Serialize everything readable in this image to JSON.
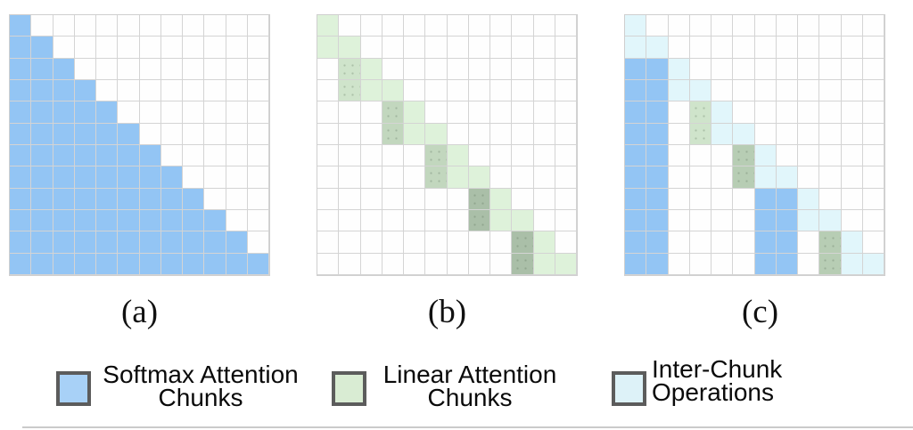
{
  "figure": {
    "panels": [
      {
        "id": "a",
        "label": "(a)",
        "grid_size": 12,
        "segments": [
          {
            "row": 0,
            "c0": 0,
            "c1": 0,
            "color": "blue"
          },
          {
            "row": 1,
            "c0": 0,
            "c1": 1,
            "color": "blue"
          },
          {
            "row": 2,
            "c0": 0,
            "c1": 2,
            "color": "blue"
          },
          {
            "row": 3,
            "c0": 0,
            "c1": 3,
            "color": "blue"
          },
          {
            "row": 4,
            "c0": 0,
            "c1": 4,
            "color": "blue"
          },
          {
            "row": 5,
            "c0": 0,
            "c1": 5,
            "color": "blue"
          },
          {
            "row": 6,
            "c0": 0,
            "c1": 6,
            "color": "blue"
          },
          {
            "row": 7,
            "c0": 0,
            "c1": 7,
            "color": "blue"
          },
          {
            "row": 8,
            "c0": 0,
            "c1": 8,
            "color": "blue"
          },
          {
            "row": 9,
            "c0": 0,
            "c1": 9,
            "color": "blue"
          },
          {
            "row": 10,
            "c0": 0,
            "c1": 10,
            "color": "blue"
          },
          {
            "row": 11,
            "c0": 0,
            "c1": 11,
            "color": "blue"
          }
        ]
      },
      {
        "id": "b",
        "label": "(b)",
        "grid_size": 12,
        "segments": [
          {
            "row": 0,
            "c0": 0,
            "c1": 0,
            "color": "lgreen"
          },
          {
            "row": 1,
            "c0": 0,
            "c1": 1,
            "color": "lgreen"
          },
          {
            "row": 2,
            "c0": 1,
            "c1": 1,
            "color": "green1"
          },
          {
            "row": 2,
            "c0": 2,
            "c1": 2,
            "color": "lgreen"
          },
          {
            "row": 3,
            "c0": 1,
            "c1": 1,
            "color": "green1"
          },
          {
            "row": 3,
            "c0": 2,
            "c1": 3,
            "color": "lgreen"
          },
          {
            "row": 4,
            "c0": 3,
            "c1": 3,
            "color": "green2"
          },
          {
            "row": 4,
            "c0": 4,
            "c1": 4,
            "color": "lgreen"
          },
          {
            "row": 5,
            "c0": 3,
            "c1": 3,
            "color": "green2"
          },
          {
            "row": 5,
            "c0": 4,
            "c1": 5,
            "color": "lgreen"
          },
          {
            "row": 6,
            "c0": 5,
            "c1": 5,
            "color": "green2"
          },
          {
            "row": 6,
            "c0": 6,
            "c1": 6,
            "color": "lgreen"
          },
          {
            "row": 7,
            "c0": 5,
            "c1": 5,
            "color": "green2"
          },
          {
            "row": 7,
            "c0": 6,
            "c1": 7,
            "color": "lgreen"
          },
          {
            "row": 8,
            "c0": 7,
            "c1": 7,
            "color": "green4"
          },
          {
            "row": 8,
            "c0": 8,
            "c1": 8,
            "color": "lgreen"
          },
          {
            "row": 9,
            "c0": 7,
            "c1": 7,
            "color": "green4"
          },
          {
            "row": 9,
            "c0": 8,
            "c1": 9,
            "color": "lgreen"
          },
          {
            "row": 10,
            "c0": 9,
            "c1": 9,
            "color": "green4"
          },
          {
            "row": 10,
            "c0": 10,
            "c1": 10,
            "color": "lgreen"
          },
          {
            "row": 11,
            "c0": 9,
            "c1": 9,
            "color": "green4"
          },
          {
            "row": 11,
            "c0": 10,
            "c1": 11,
            "color": "lgreen"
          }
        ]
      },
      {
        "id": "c",
        "label": "(c)",
        "grid_size": 12,
        "segments": [
          {
            "row": 0,
            "c0": 0,
            "c1": 0,
            "color": "cyan"
          },
          {
            "row": 1,
            "c0": 0,
            "c1": 1,
            "color": "cyan"
          },
          {
            "row": 2,
            "c0": 0,
            "c1": 1,
            "color": "blue"
          },
          {
            "row": 2,
            "c0": 2,
            "c1": 2,
            "color": "cyan"
          },
          {
            "row": 3,
            "c0": 0,
            "c1": 1,
            "color": "blue"
          },
          {
            "row": 3,
            "c0": 2,
            "c1": 3,
            "color": "cyan"
          },
          {
            "row": 4,
            "c0": 0,
            "c1": 1,
            "color": "blue"
          },
          {
            "row": 4,
            "c0": 3,
            "c1": 3,
            "color": "green1"
          },
          {
            "row": 4,
            "c0": 4,
            "c1": 4,
            "color": "cyan"
          },
          {
            "row": 5,
            "c0": 0,
            "c1": 1,
            "color": "blue"
          },
          {
            "row": 5,
            "c0": 3,
            "c1": 3,
            "color": "green1"
          },
          {
            "row": 5,
            "c0": 4,
            "c1": 5,
            "color": "cyan"
          },
          {
            "row": 6,
            "c0": 0,
            "c1": 1,
            "color": "blue"
          },
          {
            "row": 6,
            "c0": 5,
            "c1": 5,
            "color": "green3"
          },
          {
            "row": 6,
            "c0": 6,
            "c1": 6,
            "color": "cyan"
          },
          {
            "row": 7,
            "c0": 0,
            "c1": 1,
            "color": "blue"
          },
          {
            "row": 7,
            "c0": 5,
            "c1": 5,
            "color": "green3"
          },
          {
            "row": 7,
            "c0": 6,
            "c1": 7,
            "color": "cyan"
          },
          {
            "row": 8,
            "c0": 0,
            "c1": 1,
            "color": "blue"
          },
          {
            "row": 8,
            "c0": 6,
            "c1": 7,
            "color": "blue"
          },
          {
            "row": 8,
            "c0": 8,
            "c1": 8,
            "color": "cyan"
          },
          {
            "row": 9,
            "c0": 0,
            "c1": 1,
            "color": "blue"
          },
          {
            "row": 9,
            "c0": 6,
            "c1": 7,
            "color": "blue"
          },
          {
            "row": 9,
            "c0": 8,
            "c1": 9,
            "color": "cyan"
          },
          {
            "row": 10,
            "c0": 0,
            "c1": 1,
            "color": "blue"
          },
          {
            "row": 10,
            "c0": 6,
            "c1": 7,
            "color": "blue"
          },
          {
            "row": 10,
            "c0": 9,
            "c1": 9,
            "color": "green3"
          },
          {
            "row": 10,
            "c0": 10,
            "c1": 10,
            "color": "cyan"
          },
          {
            "row": 11,
            "c0": 0,
            "c1": 1,
            "color": "blue"
          },
          {
            "row": 11,
            "c0": 6,
            "c1": 7,
            "color": "blue"
          },
          {
            "row": 11,
            "c0": 9,
            "c1": 9,
            "color": "green3"
          },
          {
            "row": 11,
            "c0": 10,
            "c1": 11,
            "color": "cyan"
          }
        ]
      }
    ],
    "legend": {
      "entries": [
        {
          "swatch_color": "legend_blue",
          "line1": "Softmax Attention",
          "line2": "Chunks"
        },
        {
          "swatch_color": "legend_green",
          "line1": "Linear Attention",
          "line2": "Chunks"
        },
        {
          "swatch_color": "legend_cyan",
          "line1": "Inter-Chunk",
          "line2": "Operations"
        }
      ]
    },
    "colors": {
      "blue": "#93c5f4",
      "cyan": "#e1f6fb",
      "lgreen": "#def2da",
      "green1": "#cfe4cb",
      "green2": "#c2d7be",
      "green3": "#b7cdb4",
      "green4": "#aabfa8",
      "legend_blue": "#a8d1f7",
      "legend_green": "#d9ecd3",
      "legend_cyan": "#ddf2f8",
      "grid_line": "#d4d4d4",
      "swatch_border": "#5c5c5c"
    }
  }
}
